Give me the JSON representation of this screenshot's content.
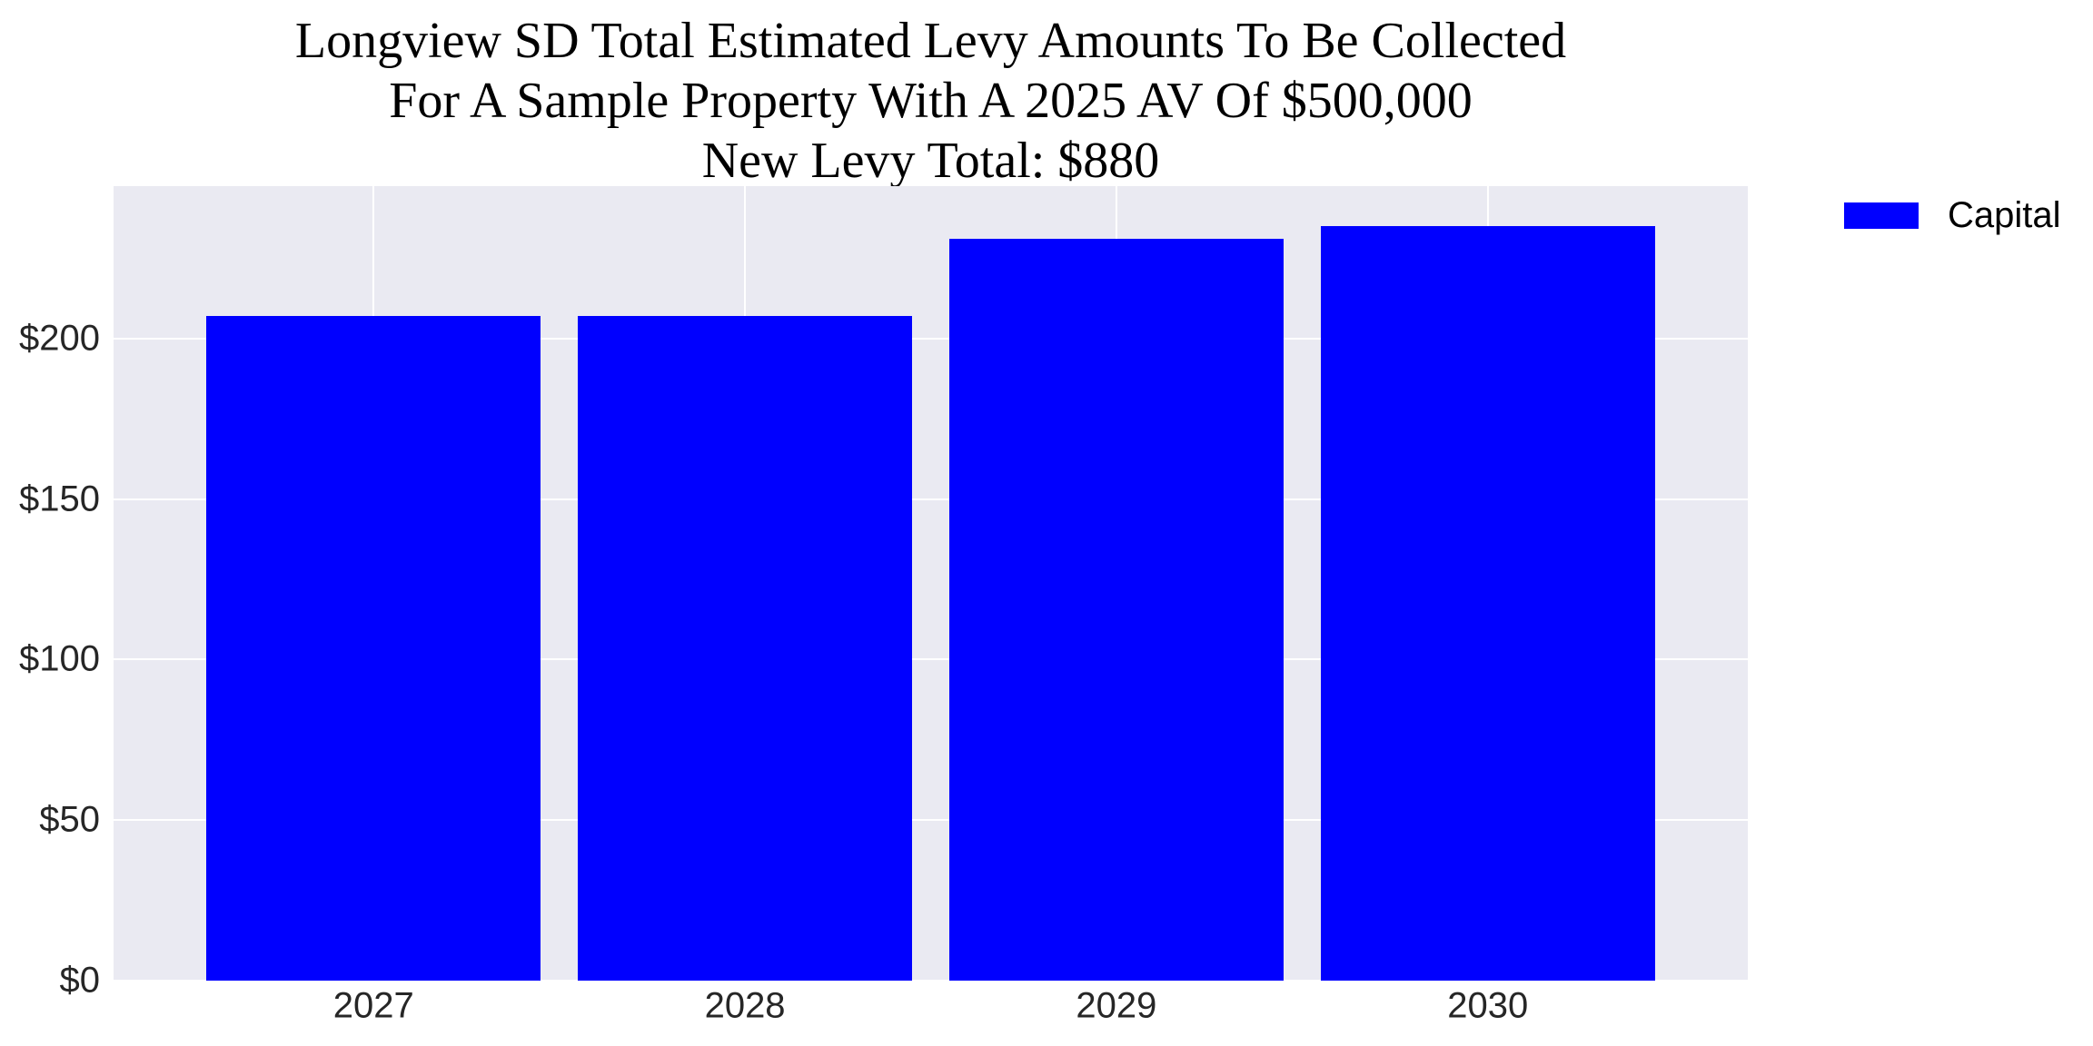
{
  "title": {
    "line1": "Longview SD Total Estimated Levy Amounts To Be Collected",
    "line2": "For A Sample Property With A 2025 AV Of $500,000",
    "line3": "New Levy Total: $880"
  },
  "legend": {
    "label": "Capital",
    "color": "#0000FF"
  },
  "colors": {
    "bar": "#0000FF",
    "plot_background": "#EAEAF2",
    "gridline": "#FFFFFF",
    "tick_text": "#262626",
    "title_text": "#000000"
  },
  "chart_data": {
    "type": "bar",
    "title": "Longview SD Total Estimated Levy Amounts To Be Collected For A Sample Property With A 2025 AV Of $500,000 — New Levy Total: $880",
    "categories": [
      "2027",
      "2028",
      "2029",
      "2030"
    ],
    "series": [
      {
        "name": "Capital",
        "color": "#0000FF",
        "values": [
          207,
          207,
          231,
          235
        ]
      }
    ],
    "xlabel": "",
    "ylabel": "",
    "ylim": [
      0,
      247.5
    ],
    "xlim": [
      -0.7,
      3.7
    ],
    "yticks": [
      0,
      50,
      100,
      150,
      200
    ],
    "ytick_labels": [
      "$0",
      "$50",
      "$100",
      "$150",
      "$200"
    ],
    "grid": true,
    "gridlines": "horizontal at yticks, vertical at category centers",
    "legend_position": "outside upper right",
    "bar_width_fraction": 0.9
  }
}
